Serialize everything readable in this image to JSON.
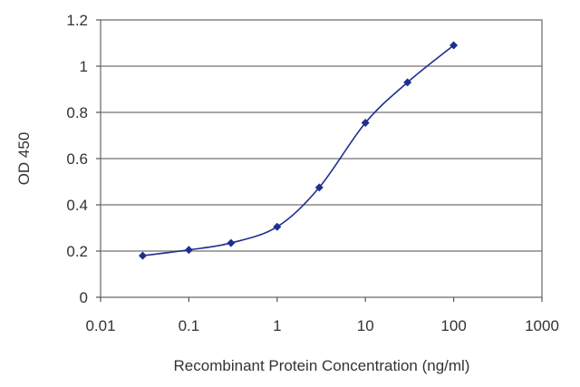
{
  "chart_data": {
    "type": "line",
    "title": "",
    "xlabel": "Recombinant Protein Concentration (ng/ml)",
    "ylabel": "OD 450",
    "x_scale": "log",
    "xlim": [
      0.01,
      1000
    ],
    "ylim": [
      0,
      1.2
    ],
    "x_ticks": [
      0.01,
      0.1,
      1,
      10,
      100,
      1000
    ],
    "x_tick_labels": [
      "0.01",
      "0.1",
      "1",
      "10",
      "100",
      "1000"
    ],
    "y_ticks": [
      0,
      0.2,
      0.4,
      0.6,
      0.8,
      1,
      1.2
    ],
    "y_tick_labels": [
      "0",
      "0.2",
      "0.4",
      "0.6",
      "0.8",
      "1",
      "1.2"
    ],
    "grid": "horizontal",
    "legend": "none",
    "series": [
      {
        "x": [
          0.03,
          0.1,
          0.3,
          1,
          3,
          10,
          30,
          100
        ],
        "y": [
          0.18,
          0.205,
          0.235,
          0.305,
          0.475,
          0.755,
          0.93,
          1.09
        ],
        "color": "#1f2f8f"
      }
    ]
  }
}
